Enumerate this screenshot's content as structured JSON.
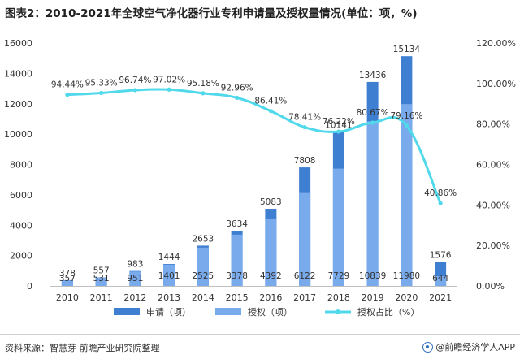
{
  "title": "图表2：2010-2021年全球空气净化器行业专利申请量及授权量情况(单位：项，%)",
  "source": "资料来源：智慧芽 前瞻产业研究院整理",
  "brand": "@前瞻经济学人APP",
  "colors": {
    "applications": "#3f7fd2",
    "grants": "#78aaec",
    "ratio": "#4fd9ea"
  },
  "chart_data": {
    "type": "bar",
    "categories": [
      "2010",
      "2011",
      "2012",
      "2013",
      "2014",
      "2015",
      "2016",
      "2017",
      "2018",
      "2019",
      "2020",
      "2021"
    ],
    "series": [
      {
        "name": "申请（项）",
        "type": "bar",
        "axis": "left",
        "values": [
          378,
          557,
          983,
          1444,
          2653,
          3634,
          5083,
          7808,
          10141,
          13436,
          15134,
          1576
        ],
        "labels": [
          "378",
          "557",
          "983",
          "1444",
          "2653",
          "3634",
          "5083",
          "7808",
          "10141",
          "13436",
          "15134",
          "1576"
        ]
      },
      {
        "name": "授权（项）",
        "type": "bar",
        "axis": "left",
        "values": [
          357,
          531,
          951,
          1401,
          2525,
          3378,
          4392,
          6122,
          7729,
          10839,
          11980,
          644
        ],
        "labels": [
          "357",
          "531",
          "951",
          "1401",
          "2525",
          "3378",
          "4392",
          "6122",
          "7729",
          "10839",
          "11980",
          "644"
        ]
      },
      {
        "name": "授权占比（%）",
        "type": "line",
        "axis": "right",
        "values": [
          94.44,
          95.33,
          96.74,
          97.02,
          95.18,
          92.96,
          86.41,
          78.41,
          76.22,
          80.67,
          79.16,
          40.86
        ],
        "labels": [
          "94.44%",
          "95.33%",
          "96.74%",
          "97.02%",
          "95.18%",
          "92.96%",
          "86.41%",
          "78.41%",
          "76.22%",
          "80.67%",
          "79.16%",
          "40.86%"
        ]
      }
    ],
    "y_left": {
      "min": 0,
      "max": 16000,
      "ticks": [
        "0",
        "2000",
        "4000",
        "6000",
        "8000",
        "10000",
        "12000",
        "14000",
        "16000"
      ]
    },
    "y_right": {
      "min": 0,
      "max": 120,
      "ticks": [
        "0.00%",
        "20.00%",
        "40.00%",
        "60.00%",
        "80.00%",
        "100.00%",
        "120.00%"
      ]
    },
    "legend": {
      "position": "bottom"
    },
    "grid": false
  }
}
